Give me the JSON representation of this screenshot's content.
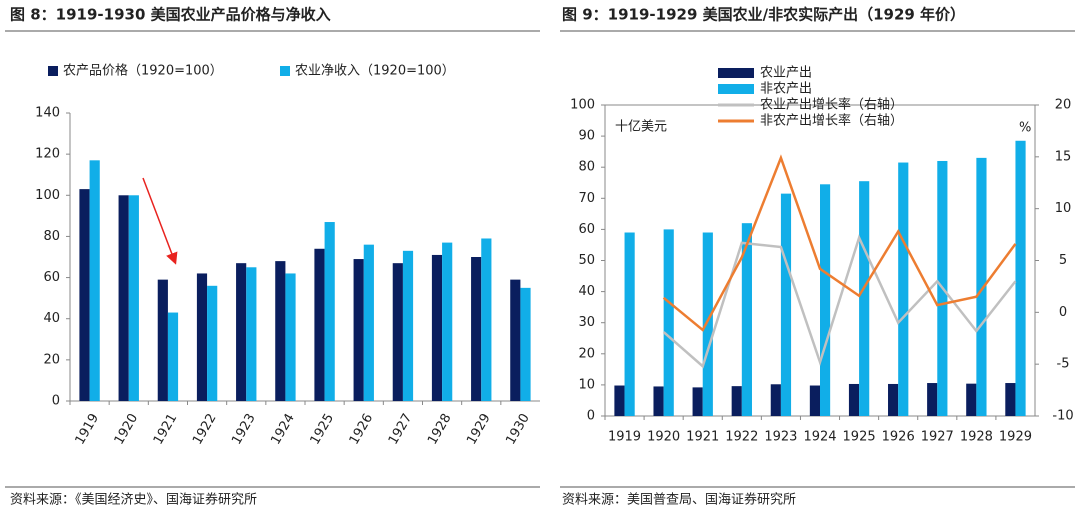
{
  "chart_data": [
    {
      "type": "bar",
      "title": "图 8：1919-1930 美国农业产品价格与净收入",
      "source": "资料来源：《美国经济史》、国海证券研究所",
      "categories": [
        "1919",
        "1920",
        "1921",
        "1922",
        "1923",
        "1924",
        "1925",
        "1926",
        "1927",
        "1928",
        "1929",
        "1930"
      ],
      "series": [
        {
          "name": "农产品价格（1920=100）",
          "type": "bar",
          "color": "#0a1e5e",
          "values": [
            103,
            100,
            59,
            62,
            67,
            68,
            74,
            69,
            67,
            71,
            70,
            59
          ]
        },
        {
          "name": "农业净收入（1920=100）",
          "type": "bar",
          "color": "#11aee8",
          "values": [
            117,
            100,
            43,
            56,
            65,
            62,
            87,
            76,
            73,
            77,
            79,
            55
          ]
        }
      ],
      "ylim": [
        0,
        140
      ],
      "yticks": [
        0,
        20,
        40,
        60,
        80,
        100,
        120,
        140
      ],
      "legend": "top"
    },
    {
      "type": "bar",
      "title": "图 9：1919-1929 美国农业/非农实际产出（1929 年价）",
      "source": "资料来源：美国普查局、国海证券研究所",
      "unit_label": "十亿美元",
      "y2_unit_label": "%",
      "categories": [
        "1919",
        "1920",
        "1921",
        "1922",
        "1923",
        "1924",
        "1925",
        "1926",
        "1927",
        "1928",
        "1929"
      ],
      "series": [
        {
          "name": "农业产出",
          "type": "bar",
          "color": "#0a1e5e",
          "values": [
            9.8,
            9.5,
            9.2,
            9.6,
            10.2,
            9.8,
            10.3,
            10.3,
            10.6,
            10.4,
            10.6
          ]
        },
        {
          "name": "非农产出",
          "type": "bar",
          "color": "#11aee8",
          "values": [
            59,
            60,
            59,
            62,
            71.5,
            74.5,
            75.5,
            81.5,
            82,
            83,
            88.5
          ]
        },
        {
          "name": "农业产出增长率（右轴）",
          "type": "line",
          "axis": "y2",
          "color": "#c0c0c0",
          "values": [
            null,
            -1.9,
            -5.2,
            6.7,
            6.3,
            -4.8,
            7.2,
            -1.0,
            3.0,
            -1.8,
            3.0
          ]
        },
        {
          "name": "非农产出增长率（右轴）",
          "type": "line",
          "axis": "y2",
          "color": "#ed7d31",
          "values": [
            null,
            1.4,
            -1.7,
            5.3,
            14.9,
            4.2,
            1.6,
            7.8,
            0.7,
            1.5,
            6.6
          ]
        }
      ],
      "ylim": [
        0,
        100
      ],
      "yticks": [
        0,
        10,
        20,
        30,
        40,
        50,
        60,
        70,
        80,
        90,
        100
      ],
      "y2lim": [
        -10,
        20
      ],
      "y2ticks": [
        -10,
        -5,
        0,
        5,
        10,
        15,
        20
      ],
      "legend": "top-left"
    }
  ]
}
